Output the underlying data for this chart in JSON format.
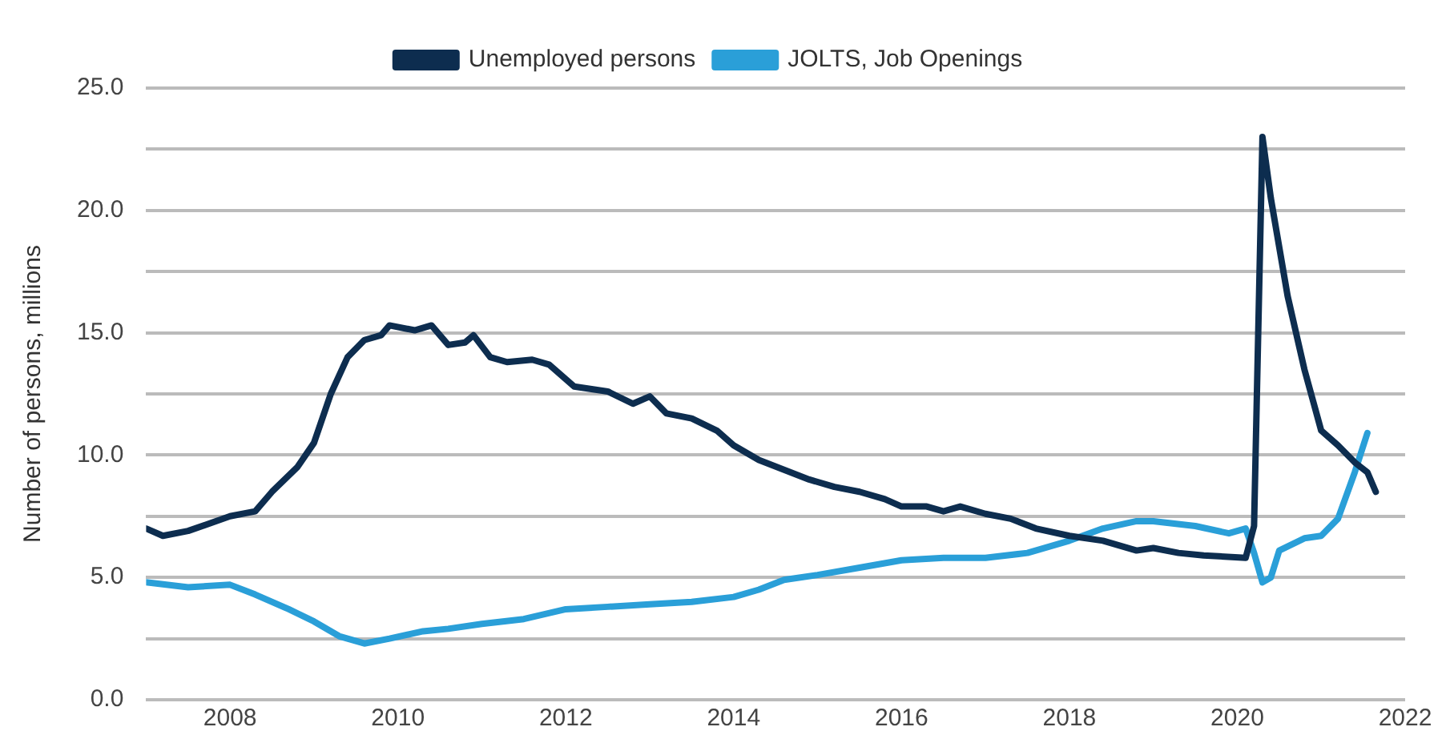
{
  "chart_data": {
    "type": "line",
    "ylabel": "Number of persons, millions",
    "legend": "top",
    "grid": "y",
    "marker": "none",
    "line_style": "solid",
    "xlim": [
      2007,
      2022
    ],
    "xticks": [
      2008,
      2010,
      2012,
      2014,
      2016,
      2018,
      2020,
      2022
    ],
    "ylim": [
      0,
      25
    ],
    "yticks": [
      {
        "value": 0,
        "label": "0.0"
      },
      {
        "value": 2.5,
        "label": null
      },
      {
        "value": 5,
        "label": "5.0"
      },
      {
        "value": 7.5,
        "label": null
      },
      {
        "value": 10,
        "label": "10.0"
      },
      {
        "value": 12.5,
        "label": null
      },
      {
        "value": 15,
        "label": "15.0"
      },
      {
        "value": 17.5,
        "label": null
      },
      {
        "value": 20,
        "label": "20.0"
      },
      {
        "value": 22.5,
        "label": null
      },
      {
        "value": 25,
        "label": "25.0"
      }
    ],
    "series": [
      {
        "name": "Unemployed persons",
        "color": "#0d2d4f",
        "x": [
          2007.0,
          2007.2,
          2007.5,
          2008.0,
          2008.3,
          2008.5,
          2008.8,
          2009.0,
          2009.2,
          2009.4,
          2009.6,
          2009.8,
          2009.9,
          2010.2,
          2010.4,
          2010.6,
          2010.8,
          2010.9,
          2011.1,
          2011.3,
          2011.6,
          2011.8,
          2012.1,
          2012.5,
          2012.8,
          2013.0,
          2013.2,
          2013.5,
          2013.8,
          2014.0,
          2014.3,
          2014.6,
          2014.9,
          2015.2,
          2015.5,
          2015.8,
          2016.0,
          2016.3,
          2016.5,
          2016.7,
          2017.0,
          2017.3,
          2017.6,
          2018.0,
          2018.4,
          2018.8,
          2019.0,
          2019.3,
          2019.6,
          2020.1,
          2020.2,
          2020.3,
          2020.4,
          2020.6,
          2020.8,
          2021.0,
          2021.2,
          2021.4,
          2021.55,
          2021.65
        ],
        "values": [
          7.0,
          6.7,
          6.9,
          7.5,
          7.7,
          8.5,
          9.5,
          10.5,
          12.5,
          14.0,
          14.7,
          14.9,
          15.3,
          15.1,
          15.3,
          14.5,
          14.6,
          14.9,
          14.0,
          13.8,
          13.9,
          13.7,
          12.8,
          12.6,
          12.1,
          12.4,
          11.7,
          11.5,
          11.0,
          10.4,
          9.8,
          9.4,
          9.0,
          8.7,
          8.5,
          8.2,
          7.9,
          7.9,
          7.7,
          7.9,
          7.6,
          7.4,
          7.0,
          6.7,
          6.5,
          6.1,
          6.2,
          6.0,
          5.9,
          5.8,
          7.1,
          23.0,
          20.5,
          16.5,
          13.5,
          11.0,
          10.4,
          9.7,
          9.3,
          8.5
        ]
      },
      {
        "name": "JOLTS, Job Openings",
        "color": "#2a9fd8",
        "x": [
          2007.0,
          2007.5,
          2008.0,
          2008.3,
          2008.7,
          2009.0,
          2009.3,
          2009.6,
          2009.9,
          2010.3,
          2010.6,
          2011.0,
          2011.5,
          2012.0,
          2012.5,
          2013.0,
          2013.5,
          2014.0,
          2014.3,
          2014.6,
          2015.0,
          2015.5,
          2016.0,
          2016.5,
          2017.0,
          2017.5,
          2018.0,
          2018.4,
          2018.8,
          2019.0,
          2019.5,
          2019.9,
          2020.1,
          2020.2,
          2020.3,
          2020.4,
          2020.5,
          2020.8,
          2021.0,
          2021.2,
          2021.4,
          2021.55
        ],
        "values": [
          4.8,
          4.6,
          4.7,
          4.3,
          3.7,
          3.2,
          2.6,
          2.3,
          2.5,
          2.8,
          2.9,
          3.1,
          3.3,
          3.7,
          3.8,
          3.9,
          4.0,
          4.2,
          4.5,
          4.9,
          5.1,
          5.4,
          5.7,
          5.8,
          5.8,
          6.0,
          6.5,
          7.0,
          7.3,
          7.3,
          7.1,
          6.8,
          7.0,
          6.0,
          4.8,
          5.0,
          6.1,
          6.6,
          6.7,
          7.4,
          9.3,
          10.9
        ]
      }
    ]
  }
}
